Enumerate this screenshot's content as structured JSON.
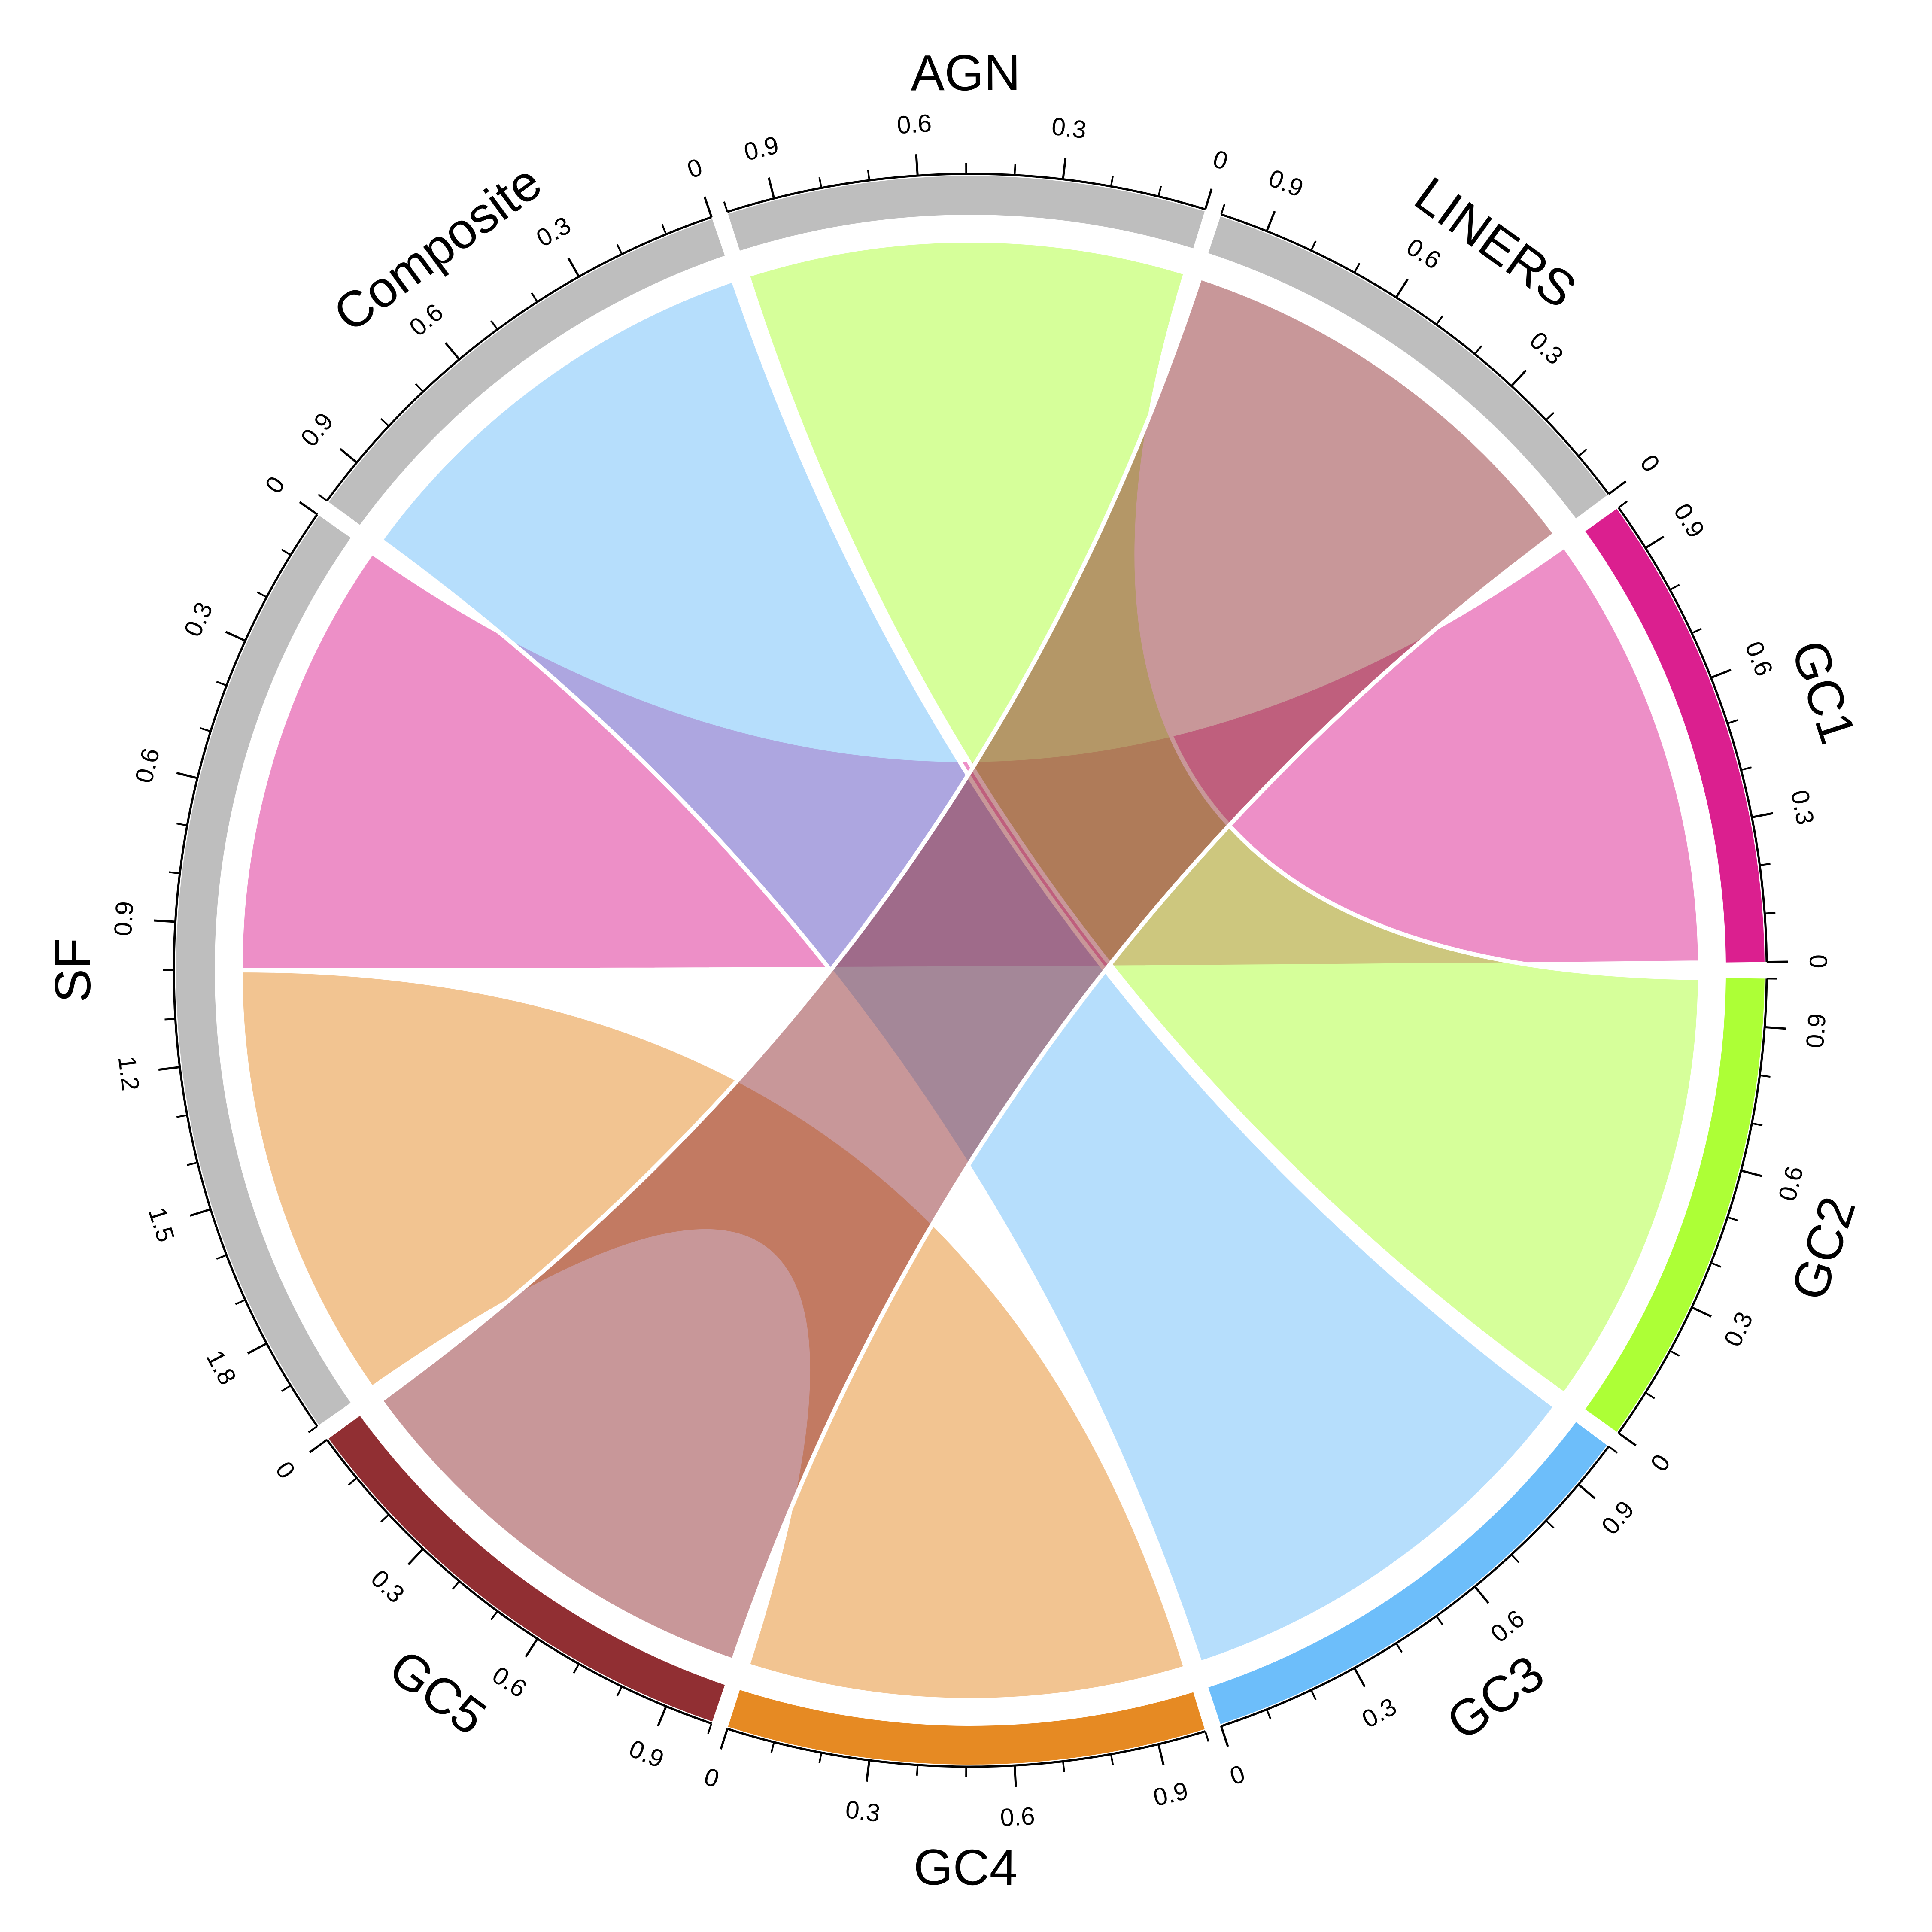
{
  "chart_data": {
    "type": "chord",
    "sectors": [
      {
        "name": "GC1",
        "value": 1.0,
        "color": "#DB1F8F",
        "ticks": [
          "0",
          "0.3",
          "0.6",
          "0.9"
        ]
      },
      {
        "name": "LINERS",
        "value": 1.0,
        "color": "#BEBEBE",
        "ticks": [
          "0",
          "0.3",
          "0.6",
          "0.9"
        ]
      },
      {
        "name": "AGN",
        "value": 1.0,
        "color": "#BEBEBE",
        "ticks": [
          "0",
          "0.3",
          "0.6",
          "0.9"
        ]
      },
      {
        "name": "Composite",
        "value": 1.0,
        "color": "#BEBEBE",
        "ticks": [
          "0",
          "0.3",
          "0.6",
          "0.9"
        ]
      },
      {
        "name": "SF",
        "value": 2.0,
        "color": "#BEBEBE",
        "ticks": [
          "0",
          "0.3",
          "0.6",
          "0.9",
          "1.2",
          "1.5",
          "1.8"
        ]
      },
      {
        "name": "GC5",
        "value": 1.0,
        "color": "#912F33",
        "ticks": [
          "0",
          "0.3",
          "0.6",
          "0.9"
        ]
      },
      {
        "name": "GC4",
        "value": 1.0,
        "color": "#E68A23",
        "ticks": [
          "0",
          "0.3",
          "0.6",
          "0.9"
        ]
      },
      {
        "name": "GC3",
        "value": 1.0,
        "color": "#6DBEFA",
        "ticks": [
          "0",
          "0.3",
          "0.6",
          "0.9"
        ]
      },
      {
        "name": "GC2",
        "value": 1.0,
        "color": "#ADFF36",
        "ticks": [
          "0",
          "0.3",
          "0.6",
          "0.9"
        ]
      }
    ],
    "links": [
      {
        "from": "GC1",
        "to": "SF",
        "value": 1.0,
        "color": "#DB1F8F"
      },
      {
        "from": "GC2",
        "to": "AGN",
        "value": 1.0,
        "color": "#ADFF36"
      },
      {
        "from": "GC3",
        "to": "Composite",
        "value": 1.0,
        "color": "#6DBEFA"
      },
      {
        "from": "GC4",
        "to": "SF",
        "value": 1.0,
        "color": "#E68A23"
      },
      {
        "from": "GC5",
        "to": "LINERS",
        "value": 1.0,
        "color": "#912F33"
      }
    ],
    "link_opacity": 0.5,
    "start_angle_deg": 0,
    "direction": "counterclockwise"
  }
}
